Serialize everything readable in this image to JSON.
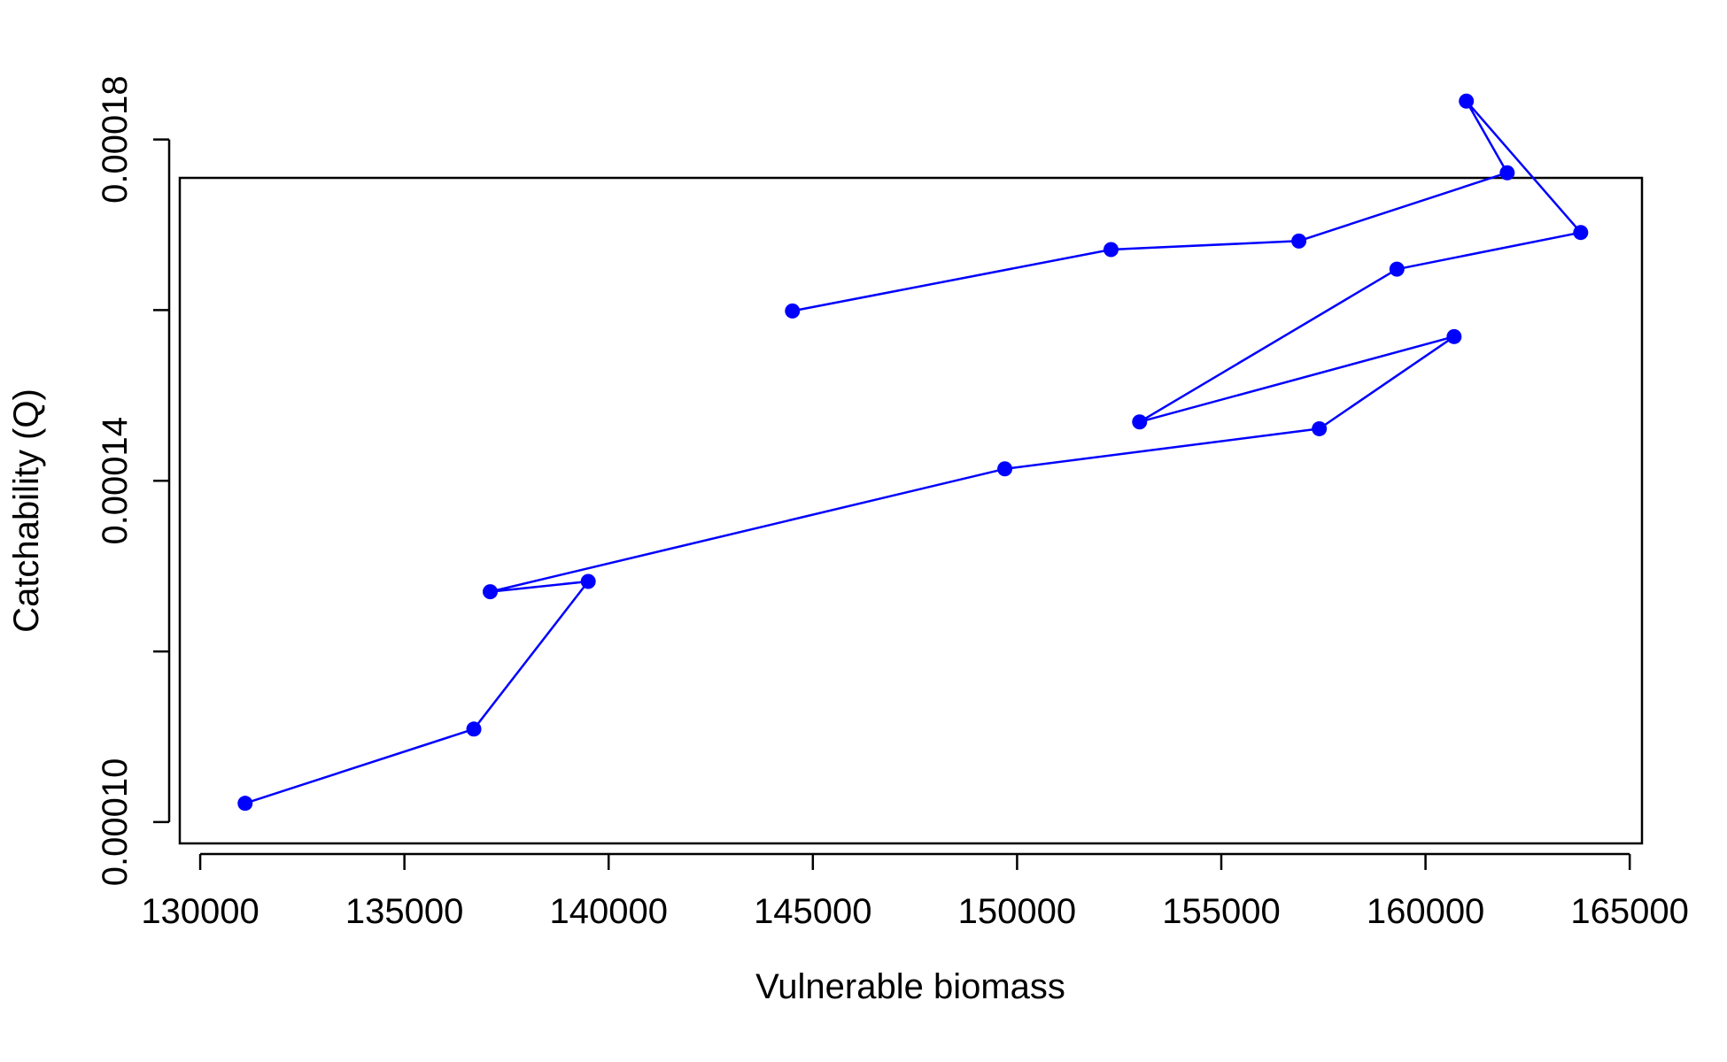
{
  "chart_data": {
    "type": "line",
    "title": "",
    "xlabel": "Vulnerable biomass",
    "ylabel": "Catchability (Q)",
    "xlim": [
      129500,
      165300
    ],
    "ylim": [
      9.75e-05,
      0.0001755
    ],
    "x_ticks": [
      130000,
      135000,
      140000,
      145000,
      150000,
      155000,
      160000,
      165000
    ],
    "x_tick_labels": [
      "130000",
      "135000",
      "140000",
      "145000",
      "150000",
      "155000",
      "160000",
      "165000"
    ],
    "y_ticks": [
      0.0001,
      0.00012,
      0.00014,
      0.00016,
      0.00018
    ],
    "y_tick_labels": [
      "0.00010",
      "",
      "0.00014",
      "",
      "0.00018"
    ],
    "grid": false,
    "legend": "none",
    "series_color": "#0000ff",
    "series": [
      {
        "x": [
          131100,
          136700,
          139500,
          137100,
          149700,
          157400,
          160700,
          153000,
          159300,
          163800,
          161000,
          162000,
          156900,
          152300,
          144500
        ],
        "y": [
          0.0001022,
          0.0001109,
          0.0001282,
          0.000127,
          0.0001414,
          0.0001461,
          0.0001569,
          0.0001469,
          0.0001648,
          0.0001691,
          0.0001845,
          0.0001761,
          0.0001681,
          0.0001671,
          0.0001599
        ]
      }
    ]
  }
}
